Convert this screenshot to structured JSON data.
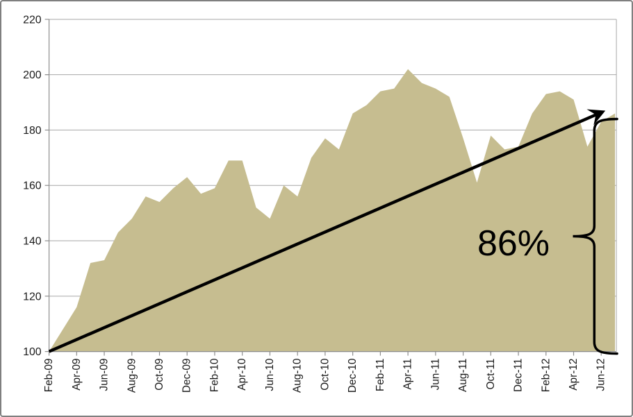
{
  "chart_data": {
    "type": "area",
    "title": "",
    "xlabel": "",
    "ylabel": "",
    "x": [
      "Feb-09",
      "Mar-09",
      "Apr-09",
      "May-09",
      "Jun-09",
      "Jul-09",
      "Aug-09",
      "Sep-09",
      "Oct-09",
      "Nov-09",
      "Dec-09",
      "Jan-10",
      "Feb-10",
      "Mar-10",
      "Apr-10",
      "May-10",
      "Jun-10",
      "Jul-10",
      "Aug-10",
      "Sep-10",
      "Oct-10",
      "Nov-10",
      "Dec-10",
      "Jan-11",
      "Feb-11",
      "Mar-11",
      "Apr-11",
      "May-11",
      "Jun-11",
      "Jul-11",
      "Aug-11",
      "Sep-11",
      "Oct-11",
      "Nov-11",
      "Dec-11",
      "Jan-12",
      "Feb-12",
      "Mar-12",
      "Apr-12",
      "May-12",
      "Jun-12",
      "Jul-12"
    ],
    "values": [
      100,
      108,
      116,
      132,
      133,
      143,
      148,
      156,
      154,
      159,
      163,
      157,
      159,
      169,
      169,
      152,
      148,
      160,
      156,
      170,
      177,
      173,
      186,
      189,
      194,
      195,
      202,
      197,
      195,
      192,
      177,
      161,
      178,
      173,
      174,
      186,
      193,
      194,
      191,
      174,
      183,
      186
    ],
    "x_tick_labels": [
      "Feb-09",
      "Apr-09",
      "Jun-09",
      "Aug-09",
      "Oct-09",
      "Dec-09",
      "Feb-10",
      "Apr-10",
      "Jun-10",
      "Aug-10",
      "Oct-10",
      "Dec-10",
      "Feb-11",
      "Apr-11",
      "Jun-11",
      "Aug-11",
      "Oct-11",
      "Dec-11",
      "Feb-12",
      "Apr-12",
      "Jun-12"
    ],
    "y_ticks": [
      100,
      120,
      140,
      160,
      180,
      200,
      220
    ],
    "ylim": [
      100,
      220
    ],
    "grid": "horizontal",
    "legend": "none",
    "annotations": {
      "gain_label": "86%",
      "trend_arrow": {
        "from_month": "Feb-09",
        "from_value": 100,
        "to_month": "Jun-12",
        "to_value": 187
      },
      "brace": {
        "side": "right-edge",
        "bottom_value": 100,
        "top_value": 184
      }
    },
    "colors": {
      "area": "#C6BD90",
      "gridline": "#A6A6A6",
      "axis": "#8C8C8C",
      "tick_text": "#1A1A1A",
      "annotation": "#000000",
      "frame_border": "#7F7F7F"
    }
  }
}
